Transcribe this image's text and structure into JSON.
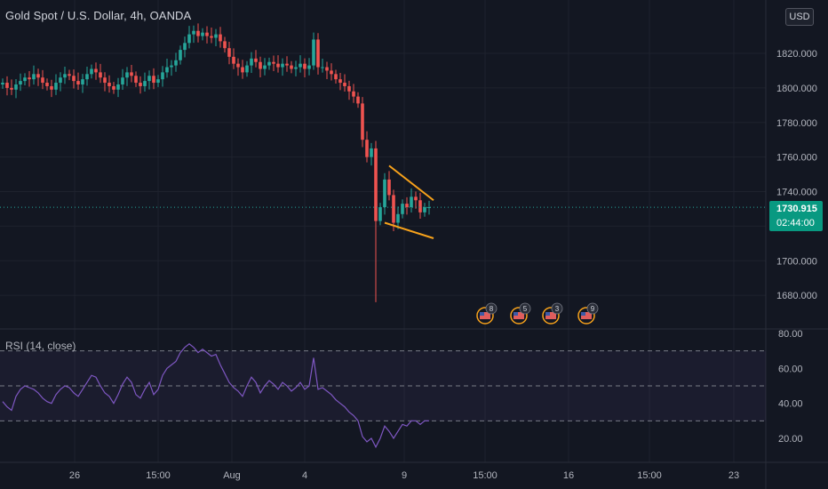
{
  "header": {
    "title": "Gold Spot / U.S. Dollar, 4h, OANDA",
    "currency_button": "USD"
  },
  "last_price": {
    "value": "1730.915",
    "countdown": "02:44:00",
    "color": "#089981"
  },
  "indicator": {
    "label": "RSI (14, close)",
    "line_color": "#7e57c2"
  },
  "colors": {
    "up": "#26a69a",
    "down": "#ef5350",
    "pattern": "#f7a21b",
    "background": "#131722"
  },
  "events": [
    {
      "count": "8"
    },
    {
      "count": "5"
    },
    {
      "count": "3"
    },
    {
      "count": "9"
    }
  ],
  "chart_data": [
    {
      "type": "candlestick",
      "title": "Gold Spot / U.S. Dollar, 4h, OANDA",
      "ylim": [
        1665,
        1845
      ],
      "y_ticks": [
        "1680.000",
        "1700.000",
        "1720.000",
        "1740.000",
        "1760.000",
        "1780.000",
        "1800.000",
        "1820.000"
      ],
      "x_ticks": [
        "26",
        "15:00",
        "Aug",
        "4",
        "9",
        "15:00",
        "16",
        "15:00",
        "23"
      ],
      "close": [
        1803,
        1800,
        1799,
        1802,
        1804,
        1806,
        1805,
        1808,
        1806,
        1803,
        1801,
        1799,
        1803,
        1806,
        1808,
        1807,
        1804,
        1802,
        1805,
        1808,
        1811,
        1809,
        1806,
        1803,
        1801,
        1799,
        1802,
        1806,
        1809,
        1807,
        1803,
        1801,
        1804,
        1807,
        1803,
        1805,
        1809,
        1812,
        1813,
        1816,
        1822,
        1826,
        1831,
        1833,
        1830,
        1832,
        1830,
        1829,
        1831,
        1827,
        1823,
        1818,
        1814,
        1812,
        1809,
        1813,
        1817,
        1815,
        1811,
        1813,
        1815,
        1814,
        1812,
        1814,
        1813,
        1811,
        1812,
        1814,
        1811,
        1813,
        1828,
        1812,
        1812,
        1810,
        1808,
        1805,
        1803,
        1801,
        1798,
        1795,
        1791,
        1770,
        1760,
        1765,
        1723,
        1731,
        1747,
        1738,
        1722,
        1727,
        1733,
        1731,
        1737,
        1735,
        1728,
        1731,
        1731
      ],
      "rsi": [
        41,
        38,
        36,
        44,
        48,
        50,
        49,
        48,
        46,
        43,
        41,
        40,
        45,
        48,
        50,
        49,
        46,
        44,
        48,
        52,
        56,
        55,
        50,
        46,
        44,
        40,
        45,
        51,
        55,
        52,
        45,
        43,
        48,
        52,
        45,
        48,
        56,
        60,
        62,
        64,
        69,
        72,
        74,
        72,
        69,
        71,
        69,
        67,
        68,
        62,
        57,
        52,
        49,
        47,
        44,
        50,
        55,
        52,
        46,
        50,
        53,
        51,
        48,
        52,
        50,
        47,
        49,
        52,
        48,
        50,
        66,
        48,
        49,
        47,
        45,
        42,
        40,
        38,
        35,
        33,
        30,
        21,
        18,
        20,
        15,
        20,
        27,
        24,
        20,
        24,
        28,
        27,
        30,
        30,
        28,
        30,
        30
      ],
      "rsi_ylim": [
        10,
        80
      ],
      "rsi_ticks": [
        "20.00",
        "40.00",
        "60.00",
        "80.00"
      ],
      "rsi_bands": [
        30,
        50,
        70
      ],
      "triangle": {
        "upper": [
          [
            87,
            1755
          ],
          [
            97,
            1735
          ]
        ],
        "lower": [
          [
            86,
            1722
          ],
          [
            97,
            1713
          ]
        ]
      }
    }
  ]
}
